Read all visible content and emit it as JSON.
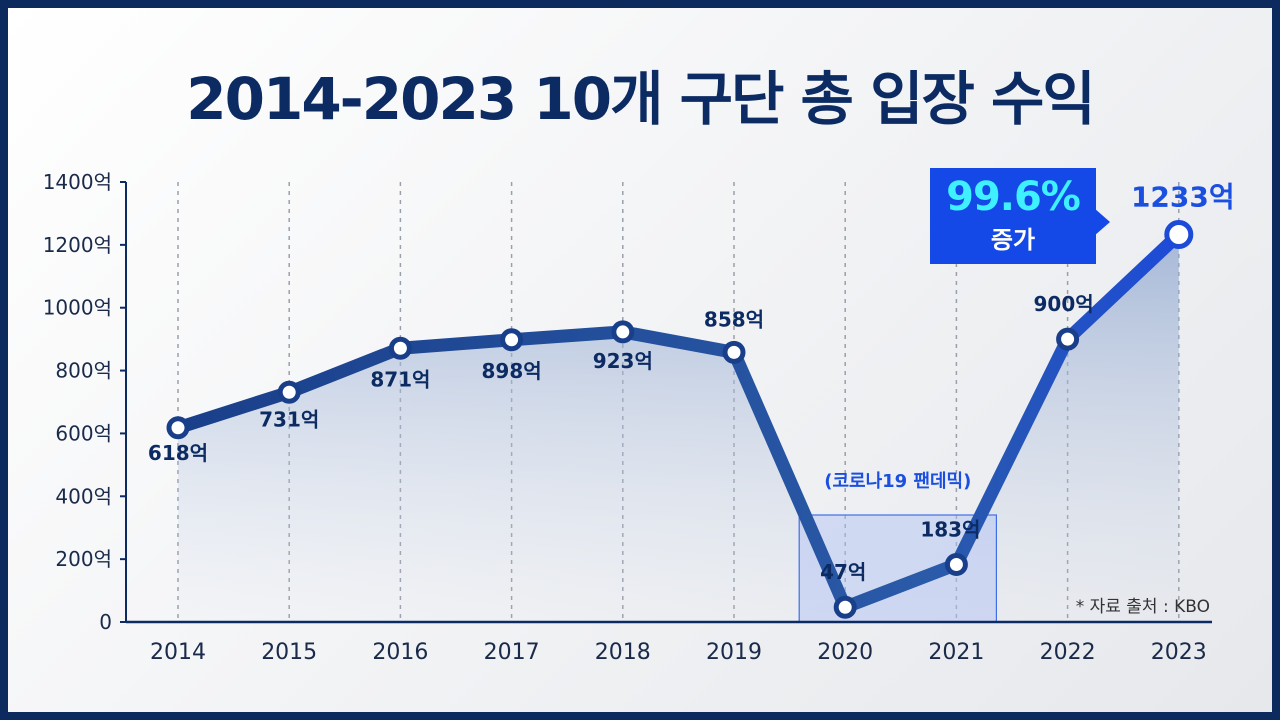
{
  "title": "2014-2023 10개 구단 총 입장 수익",
  "source_note": "* 자료 출처 : KBO",
  "callout": {
    "percent": "99.6%",
    "text": "증가"
  },
  "chart_data": {
    "type": "line",
    "title": "2014-2023 10개 구단 총 입장 수익",
    "x": [
      "2014",
      "2015",
      "2016",
      "2017",
      "2018",
      "2019",
      "2020",
      "2021",
      "2022",
      "2023"
    ],
    "y_ticks": [
      "0",
      "200억",
      "400억",
      "600억",
      "800억",
      "1000억",
      "1200억",
      "1400억"
    ],
    "ylim": [
      0,
      1400
    ],
    "series": [
      {
        "values": [
          618,
          731,
          871,
          898,
          923,
          858,
          47,
          183,
          900,
          1233
        ],
        "labels": [
          "618억",
          "731억",
          "871억",
          "898억",
          "923억",
          "858억",
          "47억",
          "183억",
          "900억",
          "1233억"
        ]
      }
    ],
    "annotations": [
      {
        "text": "(코로나19 팬데믹)",
        "range": [
          "2020",
          "2021"
        ]
      }
    ],
    "grid": "vertical dashed",
    "colors": {
      "line": "#1a4a9e",
      "rise": "#1d4bd8",
      "fill": "#9ab0d6",
      "callout": "#1449e8",
      "callout_text": "#3ff0ff"
    }
  }
}
